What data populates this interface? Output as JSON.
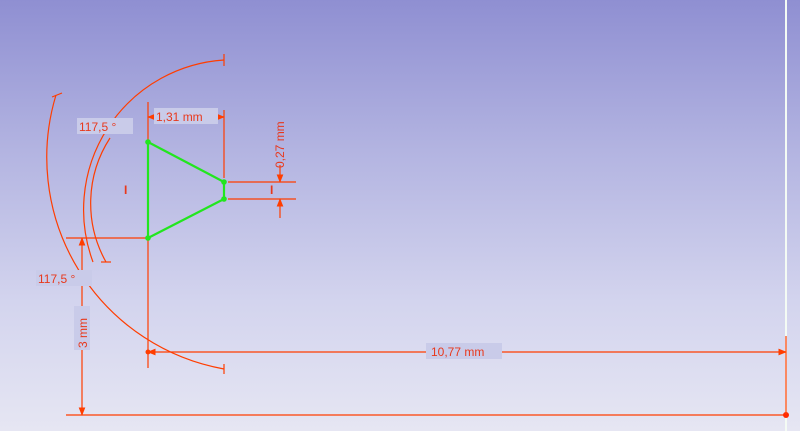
{
  "sketch": {
    "dimensions": {
      "width_label": "1,31 mm",
      "gap_label": "0,27 mm",
      "height_label": "3 mm",
      "length_label": "10,77 mm",
      "angle_upper_label": "117,5 °",
      "angle_lower_label": "117,5 °"
    },
    "constraints": {
      "vertical_left": "I",
      "vertical_right": "I"
    },
    "colors": {
      "dimension": "#ff3d00",
      "geometry": "#22e61e",
      "background_top": "#8f8fd2",
      "background_bottom": "#e6e6f3"
    }
  }
}
